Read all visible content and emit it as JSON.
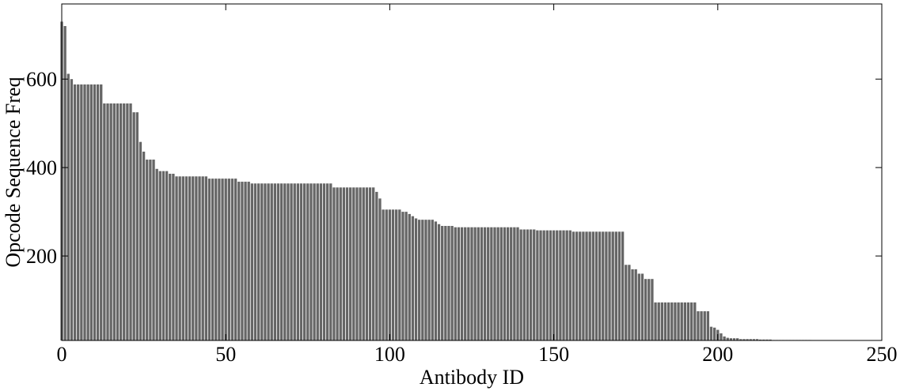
{
  "chart_data": {
    "type": "bar",
    "xlabel": "Antibody ID",
    "ylabel": "Opcode Sequence Freq",
    "x": [
      0,
      1,
      2,
      3,
      4,
      5,
      6,
      7,
      8,
      9,
      10,
      11,
      12,
      13,
      14,
      15,
      16,
      17,
      18,
      19,
      20,
      21,
      22,
      23,
      24,
      25,
      26,
      27,
      28,
      29,
      30,
      31,
      32,
      33,
      34,
      35,
      36,
      37,
      38,
      39,
      40,
      41,
      42,
      43,
      44,
      45,
      46,
      47,
      48,
      49,
      50,
      51,
      52,
      53,
      54,
      55,
      56,
      57,
      58,
      59,
      60,
      61,
      62,
      63,
      64,
      65,
      66,
      67,
      68,
      69,
      70,
      71,
      72,
      73,
      74,
      75,
      76,
      77,
      78,
      79,
      80,
      81,
      82,
      83,
      84,
      85,
      86,
      87,
      88,
      89,
      90,
      91,
      92,
      93,
      94,
      95,
      96,
      97,
      98,
      99,
      100,
      101,
      102,
      103,
      104,
      105,
      106,
      107,
      108,
      109,
      110,
      111,
      112,
      113,
      114,
      115,
      116,
      117,
      118,
      119,
      120,
      121,
      122,
      123,
      124,
      125,
      126,
      127,
      128,
      129,
      130,
      131,
      132,
      133,
      134,
      135,
      136,
      137,
      138,
      139,
      140,
      141,
      142,
      143,
      144,
      145,
      146,
      147,
      148,
      149,
      150,
      151,
      152,
      153,
      154,
      155,
      156,
      157,
      158,
      159,
      160,
      161,
      162,
      163,
      164,
      165,
      166,
      167,
      168,
      169,
      170,
      171,
      172,
      173,
      174,
      175,
      176,
      177,
      178,
      179,
      180,
      181,
      182,
      183,
      184,
      185,
      186,
      187,
      188,
      189,
      190,
      191,
      192,
      193,
      194,
      195,
      196,
      197,
      198,
      199,
      200,
      201,
      202,
      203,
      204,
      205,
      206,
      207,
      208,
      209,
      210,
      211,
      212,
      213,
      214,
      215,
      216,
      217,
      218,
      219,
      220,
      221,
      222,
      223,
      224,
      225,
      226,
      227,
      228
    ],
    "values": [
      730,
      720,
      612,
      600,
      588,
      588,
      588,
      588,
      588,
      588,
      588,
      588,
      588,
      545,
      545,
      545,
      545,
      545,
      545,
      545,
      545,
      545,
      525,
      525,
      458,
      436,
      418,
      418,
      418,
      397,
      392,
      392,
      392,
      386,
      386,
      380,
      380,
      380,
      380,
      380,
      380,
      380,
      380,
      380,
      380,
      375,
      375,
      375,
      375,
      375,
      375,
      375,
      375,
      375,
      368,
      368,
      368,
      368,
      364,
      364,
      364,
      364,
      364,
      364,
      364,
      364,
      364,
      364,
      364,
      364,
      364,
      364,
      364,
      364,
      364,
      364,
      364,
      364,
      364,
      364,
      364,
      364,
      364,
      355,
      355,
      355,
      355,
      355,
      355,
      355,
      355,
      355,
      355,
      355,
      355,
      355,
      345,
      330,
      305,
      305,
      305,
      305,
      305,
      305,
      300,
      300,
      295,
      290,
      285,
      282,
      282,
      282,
      282,
      282,
      278,
      272,
      268,
      268,
      268,
      268,
      265,
      265,
      265,
      265,
      265,
      265,
      265,
      265,
      265,
      265,
      265,
      265,
      265,
      265,
      265,
      265,
      265,
      265,
      265,
      265,
      260,
      260,
      260,
      260,
      260,
      258,
      258,
      258,
      258,
      258,
      258,
      258,
      258,
      258,
      258,
      258,
      255,
      255,
      255,
      255,
      255,
      255,
      255,
      255,
      255,
      255,
      255,
      255,
      255,
      255,
      255,
      255,
      180,
      180,
      170,
      170,
      160,
      160,
      148,
      148,
      148,
      95,
      95,
      95,
      95,
      95,
      95,
      95,
      95,
      95,
      95,
      95,
      95,
      95,
      75,
      75,
      75,
      75,
      40,
      38,
      33,
      25,
      18,
      15,
      14,
      14,
      14,
      12,
      12,
      12,
      12,
      12,
      12,
      11,
      11,
      11,
      11,
      10,
      10,
      10,
      10,
      10,
      10,
      10,
      10,
      10,
      10,
      10,
      10
    ],
    "color": "#666666",
    "xlim": [
      0,
      250
    ],
    "xticks": [
      0,
      50,
      100,
      150,
      200,
      250
    ],
    "ylim": [
      9,
      770
    ],
    "yticks": [
      200,
      400,
      600
    ]
  }
}
